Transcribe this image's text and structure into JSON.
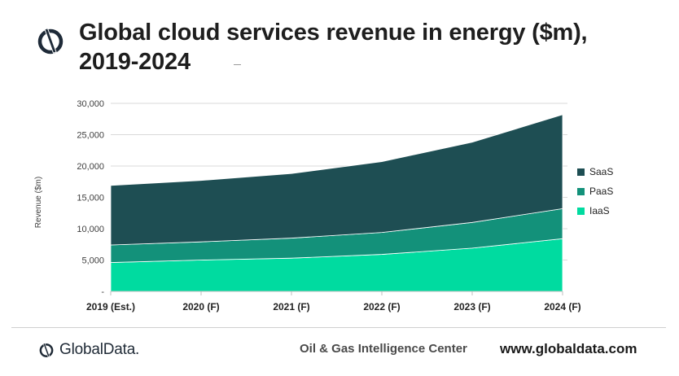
{
  "header": {
    "title_line1": "Global cloud services revenue in energy ($m),",
    "title_line2": "2019-2024",
    "logo_icon": "globaldata-ring-icon"
  },
  "chart_data": {
    "type": "area",
    "stacked": true,
    "categories": [
      "2019 (Est.)",
      "2020 (F)",
      "2021 (F)",
      "2022 (F)",
      "2023 (F)",
      "2024 (F)"
    ],
    "series": [
      {
        "name": "IaaS",
        "values": [
          4600,
          5000,
          5300,
          5900,
          6900,
          8400
        ],
        "color": "#00dba0"
      },
      {
        "name": "PaaS",
        "values": [
          2800,
          2900,
          3200,
          3500,
          4100,
          4800
        ],
        "color": "#13917a"
      },
      {
        "name": "SaaS",
        "values": [
          9500,
          9800,
          10300,
          11300,
          12800,
          15000
        ],
        "color": "#1e4e53"
      }
    ],
    "ylabel": "Revenue ($m)",
    "ylim": [
      0,
      30000
    ],
    "yticks": [
      "-",
      "5,000",
      "10,000",
      "15,000",
      "20,000",
      "25,000",
      "30,000"
    ],
    "ytick_values": [
      0,
      5000,
      10000,
      15000,
      20000,
      25000,
      30000
    ],
    "grid": true,
    "legend_position": "right",
    "legend_order": [
      "SaaS",
      "PaaS",
      "IaaS"
    ]
  },
  "footer": {
    "brand": "GlobalData.",
    "center_text": "Oil & Gas Intelligence Center",
    "url": "www.globaldata.com",
    "logo_icon": "globaldata-ring-icon"
  }
}
